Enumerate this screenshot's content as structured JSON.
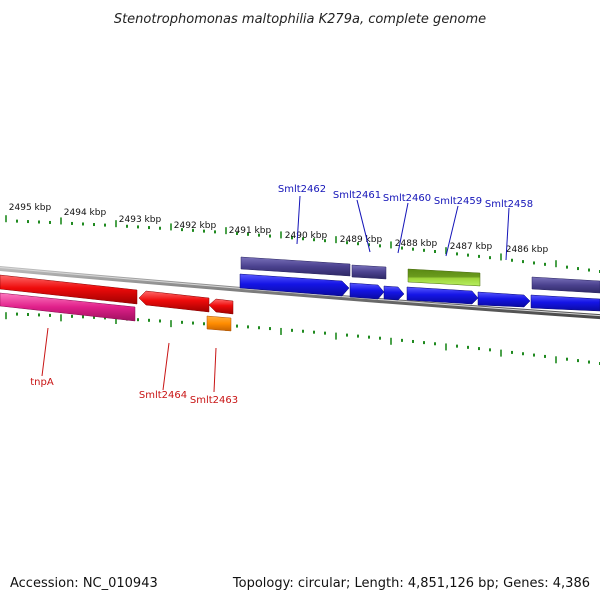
{
  "title": "Stenotrophomonas maltophilia K279a, complete genome",
  "footer": {
    "accession": "Accession: NC_010943",
    "topology": "Topology: circular; Length: 4,851,126 bp; Genes: 4,386"
  },
  "scale_labels": [
    "2495 kbp",
    "2494 kbp",
    "2493 kbp",
    "2492 kbp",
    "2491 kbp",
    "2490 kbp",
    "2489 kbp",
    "2488 kbp",
    "2487 kbp",
    "2486 kbp"
  ],
  "gene_labels_top": [
    "Smlt2462",
    "Smlt2461",
    "Smlt2460",
    "Smlt2459",
    "Smlt2458"
  ],
  "gene_labels_bottom": [
    "tnpA",
    "Smlt2464",
    "Smlt2463"
  ],
  "colors": {
    "backbone": "#8a8a8a",
    "tick": "#1f8a1f",
    "cds_forward": "#1515e6",
    "gene_forward": "#4b428f",
    "cds_reverse": "#ee0b0b",
    "gene_reverse": "#e0208a",
    "green_feature": "#6a9a1e",
    "orange_feature": "#ff8c00"
  }
}
